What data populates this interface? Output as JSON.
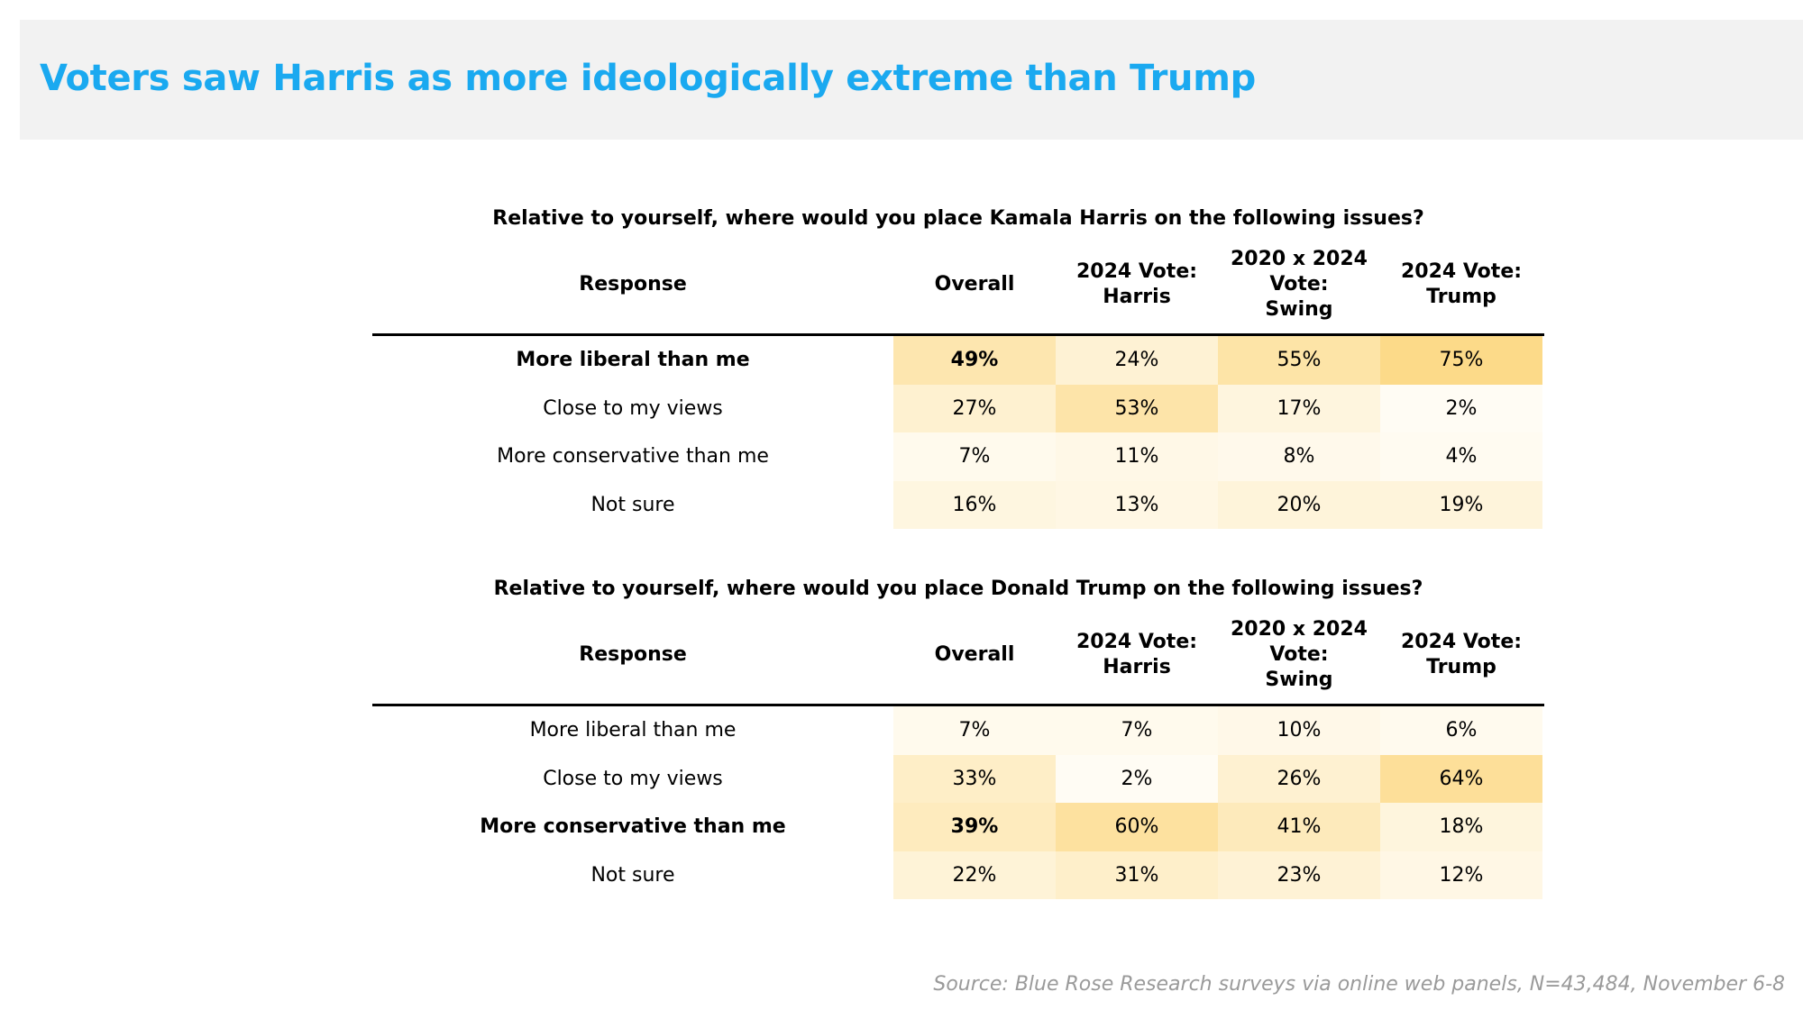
{
  "title": "Voters saw Harris as more ideologically extreme than Trump",
  "source": "Source: Blue Rose Research surveys via online web panels, N=43,484, November 6-8",
  "colors": {
    "title": "#1aa9f0",
    "heat_low": "#fffdf7",
    "heat_high": "#fcd988"
  },
  "chart_data": [
    {
      "type": "table",
      "title": "Relative to yourself, where would you place Kamala Harris on the following issues?",
      "columns": [
        "Response",
        "Overall",
        "2024 Vote:\nHarris",
        "2020 x 2024\nVote:\nSwing",
        "2024 Vote:\nTrump"
      ],
      "rows": [
        {
          "label": "More liberal than me",
          "bold": true,
          "values": [
            "49%",
            "24%",
            "55%",
            "75%"
          ]
        },
        {
          "label": "Close to my views",
          "bold": false,
          "values": [
            "27%",
            "53%",
            "17%",
            "2%"
          ]
        },
        {
          "label": "More conservative than me",
          "bold": false,
          "values": [
            "7%",
            "11%",
            "8%",
            "4%"
          ]
        },
        {
          "label": "Not sure",
          "bold": false,
          "values": [
            "16%",
            "13%",
            "20%",
            "19%"
          ]
        }
      ]
    },
    {
      "type": "table",
      "title": "Relative to yourself, where would you place Donald Trump on the following issues?",
      "columns": [
        "Response",
        "Overall",
        "2024 Vote:\nHarris",
        "2020 x 2024\nVote:\nSwing",
        "2024 Vote:\nTrump"
      ],
      "rows": [
        {
          "label": "More liberal than me",
          "bold": false,
          "values": [
            "7%",
            "7%",
            "10%",
            "6%"
          ]
        },
        {
          "label": "Close to my views",
          "bold": false,
          "values": [
            "33%",
            "2%",
            "26%",
            "64%"
          ]
        },
        {
          "label": "More conservative than me",
          "bold": true,
          "values": [
            "39%",
            "60%",
            "41%",
            "18%"
          ]
        },
        {
          "label": "Not sure",
          "bold": false,
          "values": [
            "22%",
            "31%",
            "23%",
            "12%"
          ]
        }
      ]
    }
  ]
}
